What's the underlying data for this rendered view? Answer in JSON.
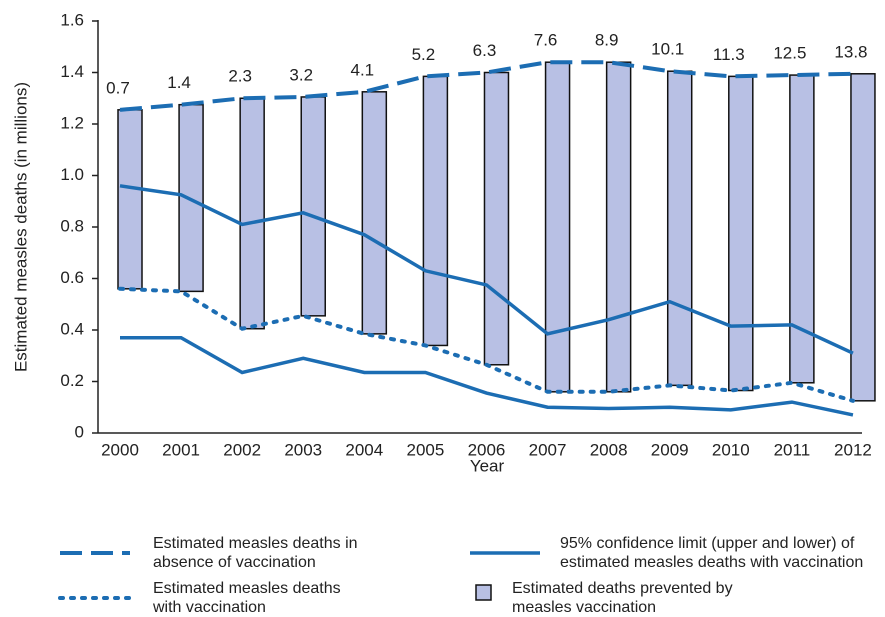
{
  "chart_data": {
    "type": "line",
    "x_label": "Year",
    "y_label": "Estimated measles deaths (in millions)",
    "categories": [
      "2000",
      "2001",
      "2002",
      "2003",
      "2004",
      "2005",
      "2006",
      "2007",
      "2008",
      "2009",
      "2010",
      "2011",
      "2012"
    ],
    "ylim": [
      0,
      1.6
    ],
    "yticks": [
      0,
      0.2,
      0.4,
      0.6,
      0.8,
      {
        "value": 1,
        "label": "1.0"
      },
      1.2,
      1.4,
      1.6
    ],
    "series": [
      {
        "name": "Estimated measles deaths in absence of vaccination",
        "style": "dashed",
        "color": "#1c6db3",
        "values": [
          1.255,
          1.275,
          1.3,
          1.305,
          1.325,
          1.385,
          1.4,
          1.44,
          1.44,
          1.405,
          1.385,
          1.39,
          1.395
        ]
      },
      {
        "name": "Estimated measles deaths with vaccination",
        "style": "dotted",
        "color": "#1c6db3",
        "values": [
          0.56,
          0.55,
          0.405,
          0.455,
          0.385,
          0.34,
          0.265,
          0.16,
          0.16,
          0.185,
          0.165,
          0.195,
          0.125
        ]
      },
      {
        "name": "95% confidence limit (upper and lower) of estimated measles deaths with vaccination",
        "style": "solid",
        "color": "#1c6db3",
        "upper": [
          0.96,
          0.925,
          0.81,
          0.855,
          0.77,
          0.63,
          0.575,
          0.385,
          0.44,
          0.51,
          0.415,
          0.42,
          0.31
        ],
        "lower": [
          0.37,
          0.37,
          0.235,
          0.29,
          0.235,
          0.235,
          0.155,
          0.1,
          0.095,
          0.1,
          0.09,
          0.12,
          0.07
        ]
      }
    ],
    "bars": {
      "name": "Estimated deaths prevented by measles vaccination",
      "color": "#b8c0e4",
      "labels": [
        0.7,
        1.4,
        2.3,
        3.2,
        4.1,
        5.2,
        6.3,
        7.6,
        8.9,
        10.1,
        11.3,
        12.5,
        13.8
      ]
    }
  }
}
